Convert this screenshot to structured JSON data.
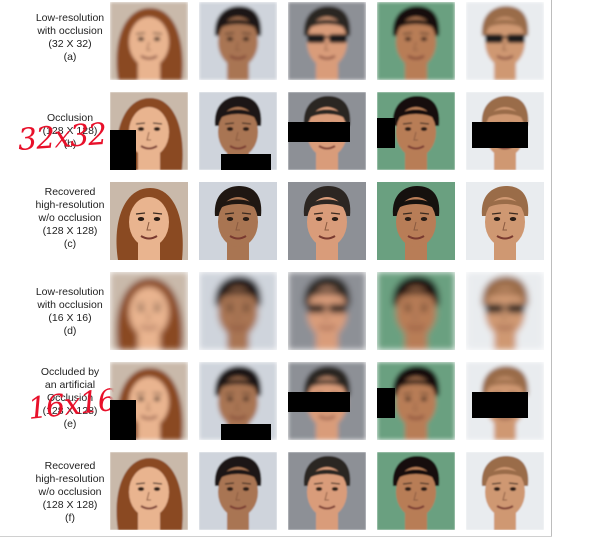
{
  "rows": [
    {
      "lines": [
        "Low-resolution",
        "with occlusion",
        "(32 X 32)",
        "(a)"
      ]
    },
    {
      "lines": [
        "Occlusion",
        "(128 X 128)",
        "(b)"
      ]
    },
    {
      "lines": [
        "Recovered",
        "high-resolution",
        "w/o occlusion",
        "(128 X 128)",
        "(c)"
      ]
    },
    {
      "lines": [
        "Low-resolution",
        "with occlusion",
        "(16 X 16)",
        "(d)"
      ]
    },
    {
      "lines": [
        "Occluded by",
        "an artificial",
        "Occlusion",
        "(128 X 128)",
        "(e)"
      ]
    },
    {
      "lines": [
        "Recovered",
        "high-resolution",
        "w/o occlusion",
        "(128 X 128)",
        "(f)"
      ]
    }
  ],
  "annotations": {
    "row_b": "32x32",
    "row_e": "16x16"
  },
  "colors": {
    "annotation": "#e8102a",
    "occlusion": "#000000"
  }
}
